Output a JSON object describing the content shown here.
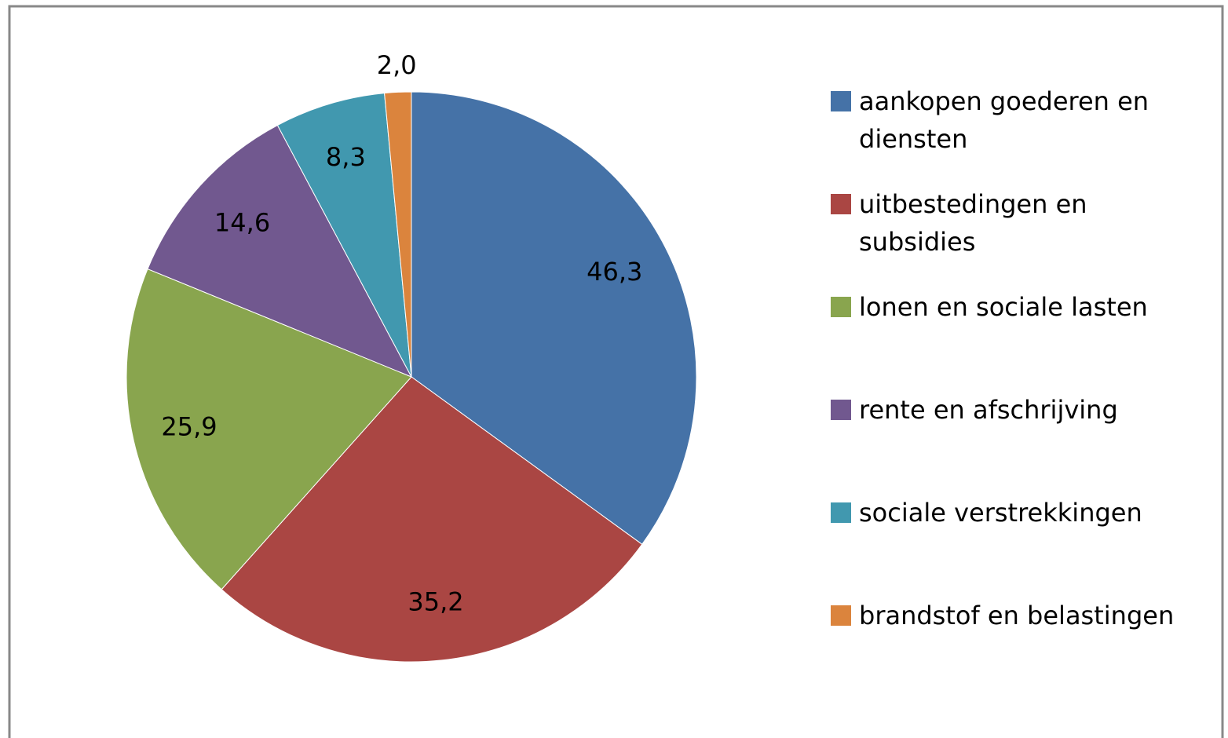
{
  "chart_data": {
    "type": "pie",
    "categories": [
      "aankopen goederen en diensten",
      "uitbestedingen en subsidies",
      "lonen en sociale lasten",
      "rente en afschrijving",
      "sociale verstrekkingen",
      "brandstof en belastingen"
    ],
    "values": [
      46.3,
      35.2,
      25.9,
      14.6,
      8.3,
      2.0
    ],
    "value_labels": [
      "46,3",
      "35,2",
      "25,9",
      "14,6",
      "8,3",
      "2,0"
    ],
    "colors": [
      "#4572a7",
      "#aa4643",
      "#89a54e",
      "#71588f",
      "#4198af",
      "#db843d"
    ],
    "legend": "right"
  }
}
